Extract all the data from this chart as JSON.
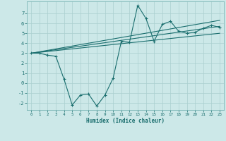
{
  "xlabel": "Humidex (Indice chaleur)",
  "bg_color": "#cce8e8",
  "grid_color": "#aacfcf",
  "line_color": "#1a6e6e",
  "xlim": [
    -0.5,
    23.5
  ],
  "ylim": [
    -2.7,
    8.2
  ],
  "xticks": [
    0,
    1,
    2,
    3,
    4,
    5,
    6,
    7,
    8,
    9,
    10,
    11,
    12,
    13,
    14,
    15,
    16,
    17,
    18,
    19,
    20,
    21,
    22,
    23
  ],
  "yticks": [
    -2,
    -1,
    0,
    1,
    2,
    3,
    4,
    5,
    6,
    7
  ],
  "line1_x": [
    0,
    1,
    2,
    3,
    4,
    5,
    6,
    7,
    8,
    9,
    10,
    11,
    12,
    13,
    14,
    15,
    16,
    17,
    18,
    19,
    20,
    21,
    22,
    23
  ],
  "line1_y": [
    3.0,
    3.0,
    2.8,
    2.7,
    0.4,
    -2.2,
    -1.2,
    -1.1,
    -2.3,
    -1.2,
    0.5,
    4.2,
    4.1,
    7.8,
    6.5,
    4.2,
    5.9,
    6.2,
    5.2,
    5.0,
    5.1,
    5.5,
    5.8,
    5.6
  ],
  "line2_x": [
    0,
    23
  ],
  "line2_y": [
    3.0,
    5.7
  ],
  "line3_x": [
    0,
    23
  ],
  "line3_y": [
    3.0,
    5.0
  ],
  "line4_x": [
    0,
    23
  ],
  "line4_y": [
    3.0,
    6.3
  ]
}
